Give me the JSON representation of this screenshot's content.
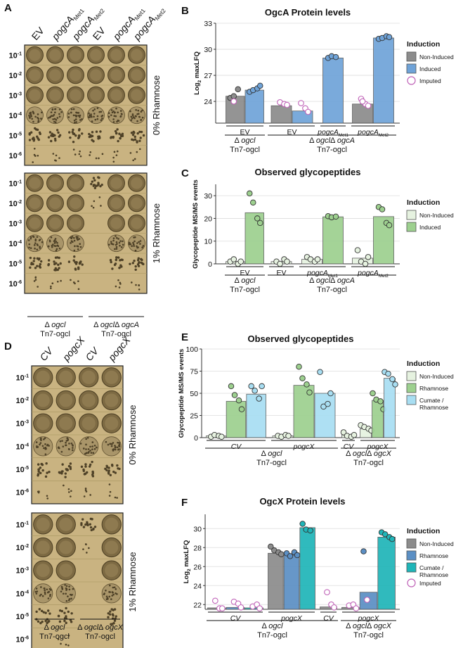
{
  "colors": {
    "noninduced": "#8c8c8c",
    "induced": "#6fa3d8",
    "green_light": "#e6f2e0",
    "green": "#9dd08f",
    "cyan": "#a8def2",
    "mid_blue": "#5b8fc4",
    "teal": "#1fb5b8",
    "imputed_stroke": "#c063b8",
    "plate_bg": "#c9b381"
  },
  "panelA": {
    "letter": "A",
    "cols": [
      "EV",
      "pogcA_Met1",
      "pogcA_Met2",
      "EV",
      "pogcA_Met1",
      "pogcA_Met2"
    ],
    "dilutions": [
      "10-1",
      "10-2",
      "10-3",
      "10-4",
      "10-5",
      "10-6"
    ],
    "plates": [
      {
        "condition": "0% Rhamnose",
        "density": [
          [
            5,
            5,
            5,
            5,
            5,
            5
          ],
          [
            5,
            5,
            5,
            5,
            5,
            5
          ],
          [
            5,
            5,
            5,
            5,
            5,
            5
          ],
          [
            4,
            4,
            4,
            4,
            4,
            4
          ],
          [
            3,
            3,
            3,
            3,
            3,
            3
          ],
          [
            1,
            1,
            1,
            1,
            1,
            1
          ]
        ]
      },
      {
        "condition": "1% Rhamnose",
        "density": [
          [
            5,
            5,
            5,
            3,
            5,
            5
          ],
          [
            5,
            5,
            5,
            1,
            5,
            5
          ],
          [
            5,
            5,
            5,
            0,
            5,
            5
          ],
          [
            4,
            4,
            4,
            0,
            4,
            4
          ],
          [
            3,
            3,
            3,
            0,
            3,
            3
          ],
          [
            1,
            1,
            1,
            0,
            1,
            1
          ]
        ]
      }
    ],
    "strains": [
      {
        "l1": "Δ ogcl",
        "l2": "Tn7-ogcl"
      },
      {
        "l1": "Δ ogclΔ ogcA",
        "l2": "Tn7-ogcl"
      }
    ]
  },
  "panelD": {
    "letter": "D",
    "cols": [
      "CV",
      "pogcX",
      "CV",
      "pogcX"
    ],
    "dilutions": [
      "10-1",
      "10-2",
      "10-3",
      "10-4",
      "10-5",
      "10-6"
    ],
    "plates": [
      {
        "condition": "0% Rhamnose",
        "density": [
          [
            5,
            5,
            5,
            5
          ],
          [
            5,
            5,
            5,
            5
          ],
          [
            5,
            5,
            5,
            5
          ],
          [
            4,
            4,
            4,
            4
          ],
          [
            3,
            3,
            3,
            3
          ],
          [
            1,
            1,
            1,
            1
          ]
        ]
      },
      {
        "condition": "1% Rhamnose",
        "density": [
          [
            5,
            5,
            3,
            5
          ],
          [
            5,
            5,
            1,
            5
          ],
          [
            5,
            5,
            0,
            5
          ],
          [
            4,
            4,
            0,
            4
          ],
          [
            3,
            3,
            0,
            3
          ],
          [
            0,
            1,
            0,
            0
          ]
        ]
      }
    ],
    "strains": [
      {
        "l1": "Δ ogcl",
        "l2": "Tn7-ogcl"
      },
      {
        "l1": "Δ ogclΔ ogcX",
        "l2": "Tn7-ogcl"
      }
    ]
  },
  "chart_data": [
    {
      "id": "B",
      "letter": "B",
      "type": "bar",
      "title": "OgcA Protein levels",
      "ylabel": "Log2 maxLFQ",
      "ylim": [
        21.5,
        33
      ],
      "yticks": [
        24,
        27,
        30,
        33
      ],
      "legend": {
        "title": "Induction",
        "items": [
          {
            "label": "Non-Induced",
            "color_key": "noninduced",
            "style": "box"
          },
          {
            "label": "Induced",
            "color_key": "induced",
            "style": "box"
          },
          {
            "label": "Imputed",
            "color_key": "imputed_stroke",
            "style": "circle"
          }
        ]
      },
      "groups": [
        {
          "label": "EV",
          "bars": [
            {
              "color_key": "noninduced",
              "value": 24.6,
              "points": [
                24.4,
                24.6,
                25.4
              ],
              "imputed": [
                24.0
              ]
            },
            {
              "color_key": "induced",
              "value": 25.3,
              "points": [
                25.1,
                25.3,
                25.5,
                25.8
              ],
              "imputed": []
            }
          ]
        },
        {
          "label": "EV",
          "bars": [
            {
              "color_key": "noninduced",
              "value": 23.5,
              "points": [],
              "imputed": [
                23.9,
                23.7,
                23.6
              ]
            },
            {
              "color_key": "induced",
              "value": 22.9,
              "points": [],
              "imputed": [
                23.8,
                23.2,
                22.8
              ]
            }
          ]
        },
        {
          "label": "pogcA_Met1",
          "bars": [
            {
              "color_key": "induced",
              "value": 29.0,
              "points": [
                29.0,
                29.2,
                29.1
              ],
              "imputed": []
            }
          ]
        },
        {
          "label": "pogcA_Met2",
          "bars": [
            {
              "color_key": "noninduced",
              "value": 23.7,
              "points": [],
              "imputed": [
                24.3,
                23.7,
                23.5,
                24.0
              ]
            },
            {
              "color_key": "induced",
              "value": 31.3,
              "points": [
                31.2,
                31.3,
                31.5,
                31.4
              ],
              "imputed": []
            }
          ]
        }
      ],
      "strains": [
        {
          "l1": "Δ ogcl",
          "l2": "Tn7-ogcl"
        },
        {
          "l1": "Δ ogclΔ ogcA",
          "l2": "Tn7-ogcl"
        }
      ]
    },
    {
      "id": "C",
      "letter": "C",
      "type": "bar",
      "title": "Observed glycopeptides",
      "ylabel": "Glycopeptide MS/MS events",
      "ylim": [
        0,
        35
      ],
      "yticks": [
        0,
        10,
        20,
        30
      ],
      "legend": {
        "title": "Induction",
        "items": [
          {
            "label": "Non-Induced",
            "color_key": "green_light",
            "style": "box"
          },
          {
            "label": "Induced",
            "color_key": "green",
            "style": "box"
          }
        ]
      },
      "groups": [
        {
          "label": "EV",
          "bars": [
            {
              "color_key": "green_light",
              "value": 1.0,
              "points": [
                1,
                2,
                0,
                1
              ],
              "imputed": []
            },
            {
              "color_key": "green",
              "value": 22.5,
              "points": [
                31,
                27,
                20,
                18
              ],
              "imputed": []
            }
          ]
        },
        {
          "label": "EV",
          "bars": [
            {
              "color_key": "green_light",
              "value": 1.0,
              "points": [
                1,
                0,
                2,
                1
              ],
              "imputed": []
            }
          ]
        },
        {
          "label": "pogcA_Met1",
          "bars": [
            {
              "color_key": "green_light",
              "value": 2.0,
              "points": [
                3,
                2,
                1,
                2
              ],
              "imputed": []
            },
            {
              "color_key": "green",
              "value": 20.7,
              "points": [
                21,
                20.5,
                20.8
              ],
              "imputed": []
            }
          ]
        },
        {
          "label": "pogcA_Met2",
          "bars": [
            {
              "color_key": "green_light",
              "value": 2.5,
              "points": [
                6,
                1,
                0,
                3
              ],
              "imputed": []
            },
            {
              "color_key": "green",
              "value": 20.8,
              "points": [
                25,
                24,
                18,
                17
              ],
              "imputed": []
            }
          ]
        }
      ],
      "strains": [
        {
          "l1": "Δ ogcl",
          "l2": "Tn7-ogcl"
        },
        {
          "l1": "Δ ogclΔ ogcA",
          "l2": "Tn7-ogcl"
        }
      ]
    },
    {
      "id": "E",
      "letter": "E",
      "type": "bar",
      "title": "Observed glycopeptides",
      "ylabel": "Glycopeptide MS/MS events",
      "ylim": [
        0,
        100
      ],
      "yticks": [
        0,
        25,
        50,
        75,
        100
      ],
      "legend": {
        "title": "Induction",
        "items": [
          {
            "label": "Non-Induced",
            "color_key": "green_light",
            "style": "box"
          },
          {
            "label": "Rhamnose",
            "color_key": "green",
            "style": "box"
          },
          {
            "label": "Cumate /",
            "label2": "Rhamnose",
            "color_key": "cyan",
            "style": "box"
          }
        ]
      },
      "groups": [
        {
          "label": "CV",
          "bars": [
            {
              "color_key": "green_light",
              "value": 2,
              "points": [
                1,
                3,
                2,
                1
              ],
              "imputed": []
            },
            {
              "color_key": "green",
              "value": 41,
              "points": [
                58,
                48,
                42,
                32
              ],
              "imputed": []
            },
            {
              "color_key": "cyan",
              "value": 49,
              "points": [
                58,
                53,
                44,
                58
              ],
              "imputed": []
            }
          ]
        },
        {
          "label": "pogcX",
          "bars": [
            {
              "color_key": "green_light",
              "value": 2,
              "points": [
                2,
                1,
                3,
                2
              ],
              "imputed": []
            },
            {
              "color_key": "green",
              "value": 59,
              "points": [
                80,
                67,
                60,
                51
              ],
              "imputed": []
            },
            {
              "color_key": "cyan",
              "value": 50,
              "points": [
                74,
                35,
                38,
                50
              ],
              "imputed": []
            }
          ]
        },
        {
          "label": "CV",
          "bars": [
            {
              "color_key": "green_light",
              "value": 3,
              "points": [
                6,
                2,
                1,
                3
              ],
              "imputed": []
            }
          ]
        },
        {
          "label": "pogcX",
          "bars": [
            {
              "color_key": "green_light",
              "value": 10,
              "points": [
                14,
                12,
                10,
                8
              ],
              "imputed": []
            },
            {
              "color_key": "green",
              "value": 42,
              "points": [
                50,
                43,
                41,
                32
              ],
              "imputed": []
            },
            {
              "color_key": "cyan",
              "value": 67,
              "points": [
                74,
                72,
                66,
                60
              ],
              "imputed": []
            }
          ]
        }
      ],
      "strains": [
        {
          "l1": "Δ ogcl",
          "l2": "Tn7-ogcl"
        },
        {
          "l1": "Δ ogclΔ ogcX",
          "l2": "Tn7-ogcl"
        }
      ]
    },
    {
      "id": "F",
      "letter": "F",
      "type": "bar",
      "title": "OgcX Protein levels",
      "ylabel": "Log2 maxLFQ",
      "ylim": [
        21.5,
        31.5
      ],
      "yticks": [
        22,
        24,
        26,
        28,
        30
      ],
      "legend": {
        "title": "Induction",
        "items": [
          {
            "label": "Non-Induced",
            "color_key": "noninduced",
            "style": "box"
          },
          {
            "label": "Rhamnose",
            "color_key": "mid_blue",
            "style": "box"
          },
          {
            "label": "Cumate /",
            "label2": "Rhamnose",
            "color_key": "teal",
            "style": "box"
          },
          {
            "label": "Imputed",
            "color_key": "imputed_stroke",
            "style": "circle"
          }
        ]
      },
      "groups": [
        {
          "label": "CV",
          "bars": [
            {
              "color_key": "noninduced",
              "value": 21.65,
              "points": [],
              "imputed": [
                22.4,
                21.6,
                21.6
              ]
            },
            {
              "color_key": "mid_blue",
              "value": 21.7,
              "points": [],
              "imputed": [
                22.3,
                22.1,
                21.7
              ]
            },
            {
              "color_key": "teal",
              "value": 21.65,
              "points": [],
              "imputed": [
                21.8,
                22.0,
                21.6
              ]
            }
          ]
        },
        {
          "label": "pogcX",
          "bars": [
            {
              "color_key": "noninduced",
              "value": 27.4,
              "points": [
                28.1,
                27.7,
                27.5,
                27.3
              ],
              "imputed": []
            },
            {
              "color_key": "mid_blue",
              "value": 27.2,
              "points": [
                27.4,
                27.1,
                27.5,
                27.2
              ],
              "imputed": []
            },
            {
              "color_key": "teal",
              "value": 30.1,
              "points": [
                30.5,
                29.9,
                29.8
              ],
              "imputed": []
            }
          ]
        },
        {
          "label": "CV",
          "bars": [
            {
              "color_key": "noninduced",
              "value": 21.75,
              "points": [],
              "imputed": [
                23.3,
                22.0,
                21.7
              ]
            }
          ]
        },
        {
          "label": "pogcX",
          "bars": [
            {
              "color_key": "noninduced",
              "value": 21.7,
              "points": [],
              "imputed": [
                21.9,
                22.0,
                21.6
              ]
            },
            {
              "color_key": "mid_blue",
              "value": 23.3,
              "points": [
                27.6
              ],
              "imputed": [
                22.5
              ]
            },
            {
              "color_key": "teal",
              "value": 29.1,
              "points": [
                29.6,
                29.4,
                29.1,
                28.9
              ],
              "imputed": []
            }
          ]
        }
      ],
      "strains": [
        {
          "l1": "Δ ogcl",
          "l2": "Tn7-ogcl"
        },
        {
          "l1": "Δ ogclΔ ogcX",
          "l2": "Tn7-ogcl"
        }
      ]
    }
  ]
}
